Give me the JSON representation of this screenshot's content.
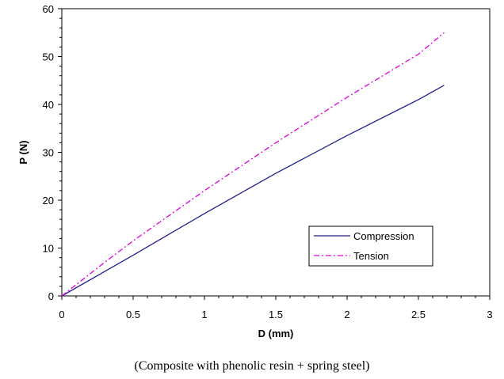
{
  "caption": "(Composite with phenolic resin + spring steel)",
  "chart_data": {
    "type": "line",
    "title": "",
    "xlabel": "D (mm)",
    "ylabel": "P (N)",
    "xlim": [
      0,
      3
    ],
    "ylim": [
      0,
      60
    ],
    "x_ticks": [
      "0",
      "0.5",
      "1",
      "1.5",
      "2",
      "2.5",
      "3"
    ],
    "y_ticks": [
      "0",
      "10",
      "20",
      "30",
      "40",
      "50",
      "60"
    ],
    "grid": false,
    "legend_position": "bottom-right",
    "series": [
      {
        "name": "Compression",
        "color": "#1f1f8f",
        "style": "solid",
        "x": [
          0,
          0.5,
          1.0,
          1.5,
          2.0,
          2.5,
          2.68
        ],
        "y": [
          0,
          8.5,
          17.2,
          25.6,
          33.5,
          41.0,
          44.0
        ]
      },
      {
        "name": "Tension",
        "color": "#e000e0",
        "style": "dashdot",
        "x": [
          0,
          0.3,
          0.5,
          1.0,
          1.5,
          2.0,
          2.5,
          2.68
        ],
        "y": [
          0,
          7.0,
          11.5,
          22.0,
          32.0,
          41.5,
          50.5,
          55.0
        ]
      }
    ]
  }
}
